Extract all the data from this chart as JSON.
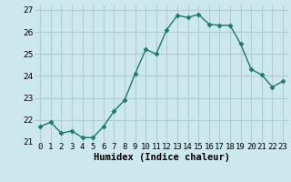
{
  "x": [
    0,
    1,
    2,
    3,
    4,
    5,
    6,
    7,
    8,
    9,
    10,
    11,
    12,
    13,
    14,
    15,
    16,
    17,
    18,
    19,
    20,
    21,
    22,
    23
  ],
  "y": [
    21.7,
    21.9,
    21.4,
    21.5,
    21.2,
    21.2,
    21.7,
    22.4,
    22.9,
    24.1,
    25.2,
    25.0,
    26.1,
    26.75,
    26.65,
    26.8,
    26.35,
    26.3,
    26.3,
    25.45,
    24.3,
    24.05,
    23.5,
    23.75
  ],
  "line_color": "#1a7a6e",
  "marker": "D",
  "marker_size": 2.5,
  "bg_color": "#cce8ed",
  "grid_color": "#b0cdd4",
  "xlabel": "Humidex (Indice chaleur)",
  "ylim": [
    21,
    27.2
  ],
  "xlim": [
    -0.5,
    23.5
  ],
  "yticks": [
    21,
    22,
    23,
    24,
    25,
    26,
    27
  ],
  "xticks": [
    0,
    1,
    2,
    3,
    4,
    5,
    6,
    7,
    8,
    9,
    10,
    11,
    12,
    13,
    14,
    15,
    16,
    17,
    18,
    19,
    20,
    21,
    22,
    23
  ],
  "tick_fontsize": 6.5,
  "xlabel_fontsize": 7.5,
  "line_width": 1.0
}
